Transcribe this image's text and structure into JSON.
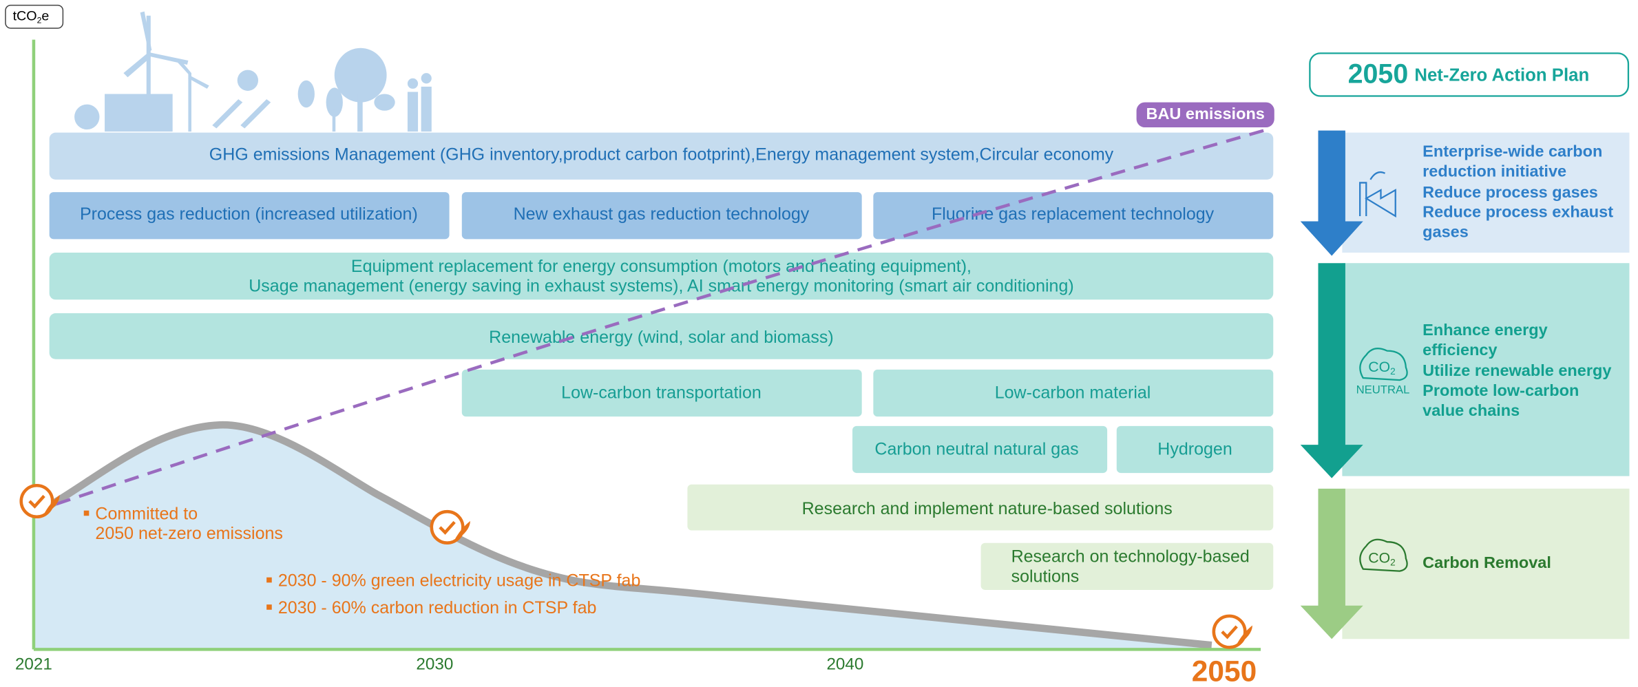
{
  "unit": {
    "main": "tCO",
    "sub": "2",
    "suffix": "e"
  },
  "axis_years": [
    "2021",
    "2030",
    "2040",
    "2050"
  ],
  "bau_label": "BAU emissions",
  "initiatives": [
    {
      "lines": [
        "GHG emissions Management (GHG inventory,product carbon footprint),Energy management system,Circular economy"
      ]
    },
    {
      "lines": [
        "Process gas reduction (increased utilization)"
      ]
    },
    {
      "lines": [
        "New exhaust gas reduction technology"
      ]
    },
    {
      "lines": [
        "Fluorine gas replacement technology"
      ]
    },
    {
      "lines": [
        "Equipment replacement for energy consumption (motors and heating equipment),",
        "Usage management (energy saving in exhaust systems), AI smart energy monitoring (smart air conditioning)"
      ]
    },
    {
      "lines": [
        "Renewable energy (wind, solar and biomass)"
      ]
    },
    {
      "lines": [
        "Low-carbon transportation"
      ]
    },
    {
      "lines": [
        "Low-carbon material"
      ]
    },
    {
      "lines": [
        "Carbon neutral natural gas"
      ]
    },
    {
      "lines": [
        "Hydrogen"
      ]
    },
    {
      "lines": [
        "Research and implement nature-based solutions"
      ]
    },
    {
      "lines": [
        "Research on technology-based",
        "solutions"
      ]
    }
  ],
  "annotations": [
    {
      "lines": [
        "Committed to",
        "2050 net-zero emissions"
      ]
    },
    {
      "lines": [
        "2030 - 90% green electricity usage in CTSP fab"
      ]
    },
    {
      "lines": [
        "2030 - 60% carbon reduction in CTSP fab"
      ]
    }
  ],
  "action_plan": {
    "title_year": "2050",
    "title": "Net-Zero Action Plan",
    "pillars": [
      {
        "lines": [
          "Enterprise-wide carbon",
          "reduction initiative",
          "Reduce process gases",
          "Reduce process exhaust",
          "gases"
        ]
      },
      {
        "icon_co": "CO",
        "icon_sub": "2",
        "icon_label": "NEUTRAL",
        "lines": [
          "Enhance energy",
          "efficiency",
          "Utilize renewable energy",
          "Promote low-carbon",
          "value chains"
        ]
      },
      {
        "icon_co": "CO",
        "icon_sub": "2",
        "lines": [
          "Carbon Removal"
        ]
      }
    ]
  }
}
